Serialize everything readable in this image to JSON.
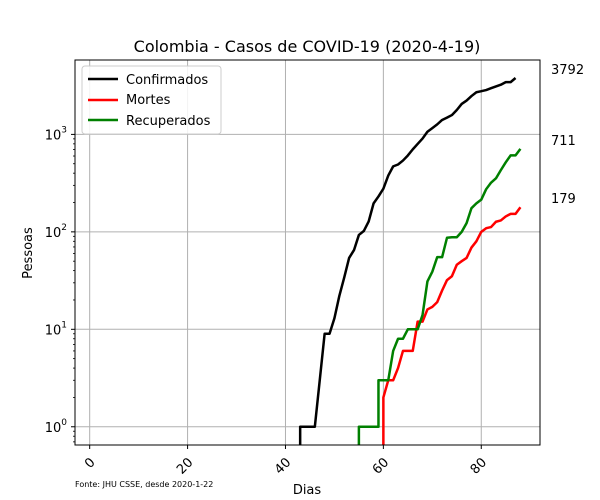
{
  "chart_data": {
    "type": "line",
    "title": "Colombia - Casos de COVID-19 (2020-4-19)",
    "xlabel": "Dias",
    "ylabel": "Pessoas",
    "source_note": "Fonte: JHU CSSE, desde 2020-1-22",
    "xlim": [
      -3,
      92
    ],
    "ylim": [
      0.65,
      5800
    ],
    "yscale": "log",
    "x_ticks": [
      0,
      20,
      40,
      60,
      80
    ],
    "y_ticks": [
      {
        "value": 1,
        "base": "10",
        "exp": "0"
      },
      {
        "value": 10,
        "base": "10",
        "exp": "1"
      },
      {
        "value": 100,
        "base": "10",
        "exp": "2"
      },
      {
        "value": 1000,
        "base": "10",
        "exp": "3"
      }
    ],
    "grid": true,
    "legend_position": "top-left",
    "series": [
      {
        "name": "Confirmados",
        "color": "#000000",
        "end_label": "3792",
        "points": [
          [
            43,
            0.5
          ],
          [
            43,
            1
          ],
          [
            44,
            1
          ],
          [
            45,
            1
          ],
          [
            46,
            1
          ],
          [
            47,
            3
          ],
          [
            48,
            9
          ],
          [
            49,
            9
          ],
          [
            50,
            13
          ],
          [
            51,
            22
          ],
          [
            52,
            34
          ],
          [
            53,
            54
          ],
          [
            54,
            65
          ],
          [
            55,
            93
          ],
          [
            56,
            102
          ],
          [
            57,
            128
          ],
          [
            58,
            196
          ],
          [
            59,
            231
          ],
          [
            60,
            277
          ],
          [
            61,
            378
          ],
          [
            62,
            470
          ],
          [
            63,
            491
          ],
          [
            64,
            539
          ],
          [
            65,
            608
          ],
          [
            66,
            702
          ],
          [
            67,
            798
          ],
          [
            68,
            906
          ],
          [
            69,
            1065
          ],
          [
            70,
            1161
          ],
          [
            71,
            1267
          ],
          [
            72,
            1406
          ],
          [
            73,
            1485
          ],
          [
            74,
            1579
          ],
          [
            75,
            1780
          ],
          [
            76,
            2054
          ],
          [
            77,
            2223
          ],
          [
            78,
            2473
          ],
          [
            79,
            2709
          ],
          [
            80,
            2776
          ],
          [
            81,
            2852
          ],
          [
            82,
            2979
          ],
          [
            83,
            3105
          ],
          [
            84,
            3233
          ],
          [
            85,
            3439
          ],
          [
            86,
            3439
          ],
          [
            87,
            3792
          ]
        ]
      },
      {
        "name": "Mortes",
        "color": "#ff0000",
        "end_label": "179",
        "points": [
          [
            60,
            0.5
          ],
          [
            60,
            2
          ],
          [
            61,
            3
          ],
          [
            62,
            3
          ],
          [
            63,
            4
          ],
          [
            64,
            6
          ],
          [
            65,
            6
          ],
          [
            66,
            6
          ],
          [
            67,
            12
          ],
          [
            68,
            12
          ],
          [
            69,
            16
          ],
          [
            70,
            17
          ],
          [
            71,
            19
          ],
          [
            72,
            25
          ],
          [
            73,
            32
          ],
          [
            74,
            35
          ],
          [
            75,
            46
          ],
          [
            76,
            50
          ],
          [
            77,
            54
          ],
          [
            78,
            69
          ],
          [
            79,
            80
          ],
          [
            80,
            100
          ],
          [
            81,
            109
          ],
          [
            82,
            112
          ],
          [
            83,
            127
          ],
          [
            84,
            131
          ],
          [
            85,
            144
          ],
          [
            86,
            153
          ],
          [
            87,
            153
          ],
          [
            88,
            179
          ]
        ]
      },
      {
        "name": "Recuperados",
        "color": "#008000",
        "end_label": "711",
        "points": [
          [
            55,
            0.5
          ],
          [
            55,
            1
          ],
          [
            56,
            1
          ],
          [
            57,
            1
          ],
          [
            58,
            1
          ],
          [
            59,
            1
          ],
          [
            59,
            3
          ],
          [
            60,
            3
          ],
          [
            61,
            3
          ],
          [
            62,
            6
          ],
          [
            63,
            8
          ],
          [
            64,
            8
          ],
          [
            65,
            10
          ],
          [
            66,
            10
          ],
          [
            67,
            10
          ],
          [
            68,
            14
          ],
          [
            69,
            31
          ],
          [
            70,
            39
          ],
          [
            71,
            55
          ],
          [
            72,
            55
          ],
          [
            73,
            87
          ],
          [
            74,
            88
          ],
          [
            75,
            88
          ],
          [
            76,
            100
          ],
          [
            77,
            123
          ],
          [
            78,
            175
          ],
          [
            79,
            196
          ],
          [
            80,
            214
          ],
          [
            81,
            274
          ],
          [
            82,
            320
          ],
          [
            83,
            354
          ],
          [
            84,
            430
          ],
          [
            85,
            517
          ],
          [
            86,
            609
          ],
          [
            87,
            609
          ],
          [
            88,
            711
          ]
        ]
      }
    ]
  }
}
